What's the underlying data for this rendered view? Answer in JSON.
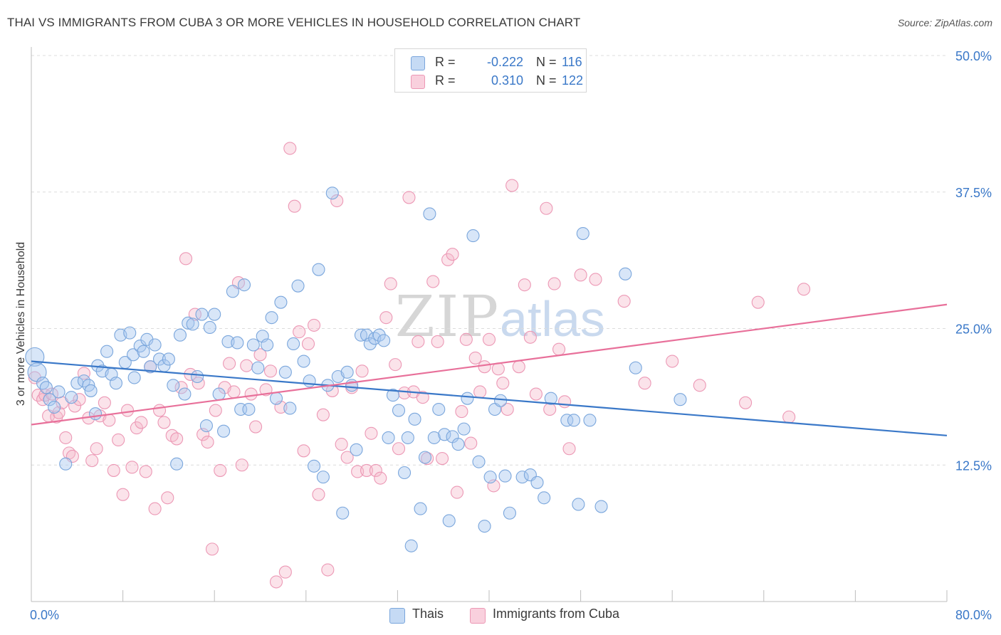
{
  "header": {
    "title": "THAI VS IMMIGRANTS FROM CUBA 3 OR MORE VEHICLES IN HOUSEHOLD CORRELATION CHART",
    "source": "Source: ZipAtlas.com"
  },
  "watermark": {
    "zip": "ZIP",
    "atlas": "atlas"
  },
  "legend": {
    "rows": [
      {
        "r_label": "R =",
        "r_value": "-0.222",
        "n_label": "N =",
        "n_value": "116",
        "color": "#a9c8ef"
      },
      {
        "r_label": "R =",
        "r_value": "0.310",
        "n_label": "N =",
        "n_value": "122",
        "color": "#f5b8cb"
      }
    ]
  },
  "bottom_legend": [
    {
      "label": "Thais",
      "color": "#a9c8ef"
    },
    {
      "label": "Immigrants from Cuba",
      "color": "#f5b8cb"
    }
  ],
  "chart_data": {
    "type": "scatter",
    "title": "THAI VS IMMIGRANTS FROM CUBA 3 OR MORE VEHICLES IN HOUSEHOLD CORRELATION CHART",
    "ylabel": "3 or more Vehicles in Household",
    "xlabel": "",
    "xlim": [
      0,
      80
    ],
    "ylim": [
      0,
      50
    ],
    "x_tick_labels": [
      "0.0%",
      "80.0%"
    ],
    "y_ticks": [
      12.5,
      25.0,
      37.5,
      50.0
    ],
    "y_tick_labels": [
      "12.5%",
      "25.0%",
      "37.5%",
      "50.0%"
    ],
    "grid": "horizontal dashed",
    "legend_position": "top-center",
    "colors": {
      "thais": "#3a78c8",
      "cuba": "#e8709a"
    },
    "series": [
      {
        "name": "Thais",
        "trend": {
          "x": [
            0,
            80
          ],
          "y": [
            22.0,
            15.2
          ]
        },
        "points": [
          [
            0.3,
            22.4
          ],
          [
            0.5,
            21.0
          ],
          [
            1.0,
            20.0
          ],
          [
            1.3,
            19.6
          ],
          [
            1.6,
            18.5
          ],
          [
            2.0,
            17.8
          ],
          [
            2.4,
            19.2
          ],
          [
            3.0,
            12.6
          ],
          [
            3.5,
            18.7
          ],
          [
            4.0,
            20.0
          ],
          [
            4.6,
            20.2
          ],
          [
            5.0,
            19.8
          ],
          [
            5.2,
            19.3
          ],
          [
            5.6,
            17.2
          ],
          [
            5.8,
            21.6
          ],
          [
            6.2,
            21.1
          ],
          [
            6.6,
            22.9
          ],
          [
            7.0,
            20.8
          ],
          [
            7.4,
            20.0
          ],
          [
            7.8,
            24.4
          ],
          [
            8.2,
            21.9
          ],
          [
            8.6,
            24.6
          ],
          [
            8.9,
            22.6
          ],
          [
            9.0,
            20.5
          ],
          [
            9.5,
            23.4
          ],
          [
            9.8,
            22.9
          ],
          [
            10.1,
            24.0
          ],
          [
            10.4,
            21.5
          ],
          [
            10.8,
            23.5
          ],
          [
            11.2,
            22.2
          ],
          [
            11.6,
            21.6
          ],
          [
            12.0,
            22.2
          ],
          [
            12.4,
            19.8
          ],
          [
            12.7,
            12.6
          ],
          [
            13.0,
            24.4
          ],
          [
            13.4,
            19.0
          ],
          [
            13.7,
            25.5
          ],
          [
            14.1,
            25.4
          ],
          [
            14.5,
            20.6
          ],
          [
            14.9,
            26.3
          ],
          [
            15.3,
            16.1
          ],
          [
            15.6,
            25.1
          ],
          [
            16.0,
            26.3
          ],
          [
            16.4,
            19.0
          ],
          [
            16.8,
            15.6
          ],
          [
            17.2,
            23.8
          ],
          [
            17.6,
            28.4
          ],
          [
            18.0,
            23.7
          ],
          [
            18.3,
            17.6
          ],
          [
            18.6,
            29.0
          ],
          [
            19.0,
            17.6
          ],
          [
            19.4,
            23.5
          ],
          [
            19.8,
            21.4
          ],
          [
            20.2,
            24.3
          ],
          [
            20.6,
            23.5
          ],
          [
            21.0,
            26.0
          ],
          [
            21.4,
            18.6
          ],
          [
            21.8,
            27.4
          ],
          [
            22.2,
            21.0
          ],
          [
            22.6,
            17.7
          ],
          [
            22.9,
            23.6
          ],
          [
            23.3,
            28.9
          ],
          [
            23.8,
            22.0
          ],
          [
            24.3,
            20.2
          ],
          [
            24.7,
            12.4
          ],
          [
            25.1,
            30.4
          ],
          [
            25.5,
            11.4
          ],
          [
            25.9,
            19.8
          ],
          [
            26.3,
            37.4
          ],
          [
            26.8,
            20.6
          ],
          [
            27.2,
            8.1
          ],
          [
            27.6,
            21.0
          ],
          [
            28.0,
            19.8
          ],
          [
            28.4,
            13.9
          ],
          [
            28.8,
            24.4
          ],
          [
            29.3,
            24.4
          ],
          [
            29.6,
            23.6
          ],
          [
            30.0,
            24.1
          ],
          [
            30.4,
            24.4
          ],
          [
            30.8,
            23.9
          ],
          [
            31.2,
            15.0
          ],
          [
            31.6,
            18.9
          ],
          [
            32.1,
            17.5
          ],
          [
            32.6,
            11.8
          ],
          [
            32.9,
            15.0
          ],
          [
            33.2,
            5.1
          ],
          [
            33.5,
            16.7
          ],
          [
            34.0,
            8.5
          ],
          [
            34.4,
            13.2
          ],
          [
            34.8,
            35.5
          ],
          [
            35.2,
            15.0
          ],
          [
            35.6,
            17.6
          ],
          [
            36.1,
            15.3
          ],
          [
            36.5,
            7.4
          ],
          [
            36.8,
            15.1
          ],
          [
            37.3,
            14.4
          ],
          [
            37.8,
            15.8
          ],
          [
            38.1,
            18.6
          ],
          [
            38.6,
            33.5
          ],
          [
            39.1,
            12.8
          ],
          [
            39.6,
            6.9
          ],
          [
            40.1,
            11.4
          ],
          [
            40.5,
            17.6
          ],
          [
            41.0,
            18.4
          ],
          [
            41.4,
            11.5
          ],
          [
            41.8,
            8.1
          ],
          [
            42.9,
            11.4
          ],
          [
            43.6,
            11.6
          ],
          [
            44.2,
            10.9
          ],
          [
            44.8,
            9.5
          ],
          [
            45.4,
            18.6
          ],
          [
            46.8,
            16.6
          ],
          [
            47.4,
            16.6
          ],
          [
            47.8,
            8.9
          ],
          [
            48.2,
            33.7
          ],
          [
            48.8,
            16.6
          ],
          [
            49.8,
            8.7
          ],
          [
            51.9,
            30.0
          ],
          [
            52.8,
            21.4
          ],
          [
            56.7,
            18.5
          ]
        ]
      },
      {
        "name": "Immigrants from Cuba",
        "trend": {
          "x": [
            0,
            80
          ],
          "y": [
            16.2,
            27.2
          ]
        },
        "points": [
          [
            0.3,
            20.5
          ],
          [
            0.6,
            18.9
          ],
          [
            1.0,
            18.5
          ],
          [
            1.2,
            18.9
          ],
          [
            1.5,
            17.0
          ],
          [
            1.8,
            19.0
          ],
          [
            2.2,
            16.9
          ],
          [
            2.4,
            17.3
          ],
          [
            2.7,
            18.2
          ],
          [
            3.0,
            15.0
          ],
          [
            3.3,
            13.6
          ],
          [
            3.6,
            13.3
          ],
          [
            3.8,
            17.9
          ],
          [
            4.2,
            18.5
          ],
          [
            4.6,
            20.9
          ],
          [
            5.0,
            16.8
          ],
          [
            5.3,
            12.9
          ],
          [
            5.7,
            14.0
          ],
          [
            6.0,
            17.0
          ],
          [
            6.4,
            18.2
          ],
          [
            6.8,
            16.6
          ],
          [
            7.2,
            12.0
          ],
          [
            7.6,
            14.8
          ],
          [
            8.0,
            9.8
          ],
          [
            8.4,
            17.5
          ],
          [
            8.8,
            12.3
          ],
          [
            9.2,
            15.9
          ],
          [
            9.6,
            16.4
          ],
          [
            10.0,
            11.9
          ],
          [
            10.4,
            21.5
          ],
          [
            10.8,
            8.5
          ],
          [
            11.2,
            17.5
          ],
          [
            11.6,
            16.4
          ],
          [
            11.9,
            9.5
          ],
          [
            12.3,
            15.2
          ],
          [
            12.7,
            14.9
          ],
          [
            13.1,
            19.6
          ],
          [
            13.5,
            31.4
          ],
          [
            13.9,
            20.8
          ],
          [
            14.3,
            26.3
          ],
          [
            14.6,
            20.0
          ],
          [
            15.0,
            15.3
          ],
          [
            15.4,
            14.6
          ],
          [
            15.8,
            4.8
          ],
          [
            16.1,
            17.5
          ],
          [
            16.5,
            12.0
          ],
          [
            16.9,
            19.6
          ],
          [
            17.3,
            21.8
          ],
          [
            17.7,
            19.2
          ],
          [
            18.1,
            29.2
          ],
          [
            18.4,
            12.5
          ],
          [
            18.8,
            21.6
          ],
          [
            19.2,
            19.0
          ],
          [
            19.6,
            16.0
          ],
          [
            20.0,
            22.6
          ],
          [
            20.5,
            19.4
          ],
          [
            20.9,
            21.1
          ],
          [
            21.4,
            1.8
          ],
          [
            21.8,
            17.8
          ],
          [
            22.2,
            2.7
          ],
          [
            22.6,
            41.5
          ],
          [
            23.0,
            36.2
          ],
          [
            23.4,
            24.7
          ],
          [
            23.8,
            13.8
          ],
          [
            24.2,
            23.6
          ],
          [
            24.7,
            25.3
          ],
          [
            25.1,
            9.8
          ],
          [
            25.5,
            17.1
          ],
          [
            25.9,
            2.9
          ],
          [
            26.3,
            19.3
          ],
          [
            26.7,
            36.7
          ],
          [
            27.1,
            14.4
          ],
          [
            27.6,
            13.2
          ],
          [
            28.0,
            19.6
          ],
          [
            28.5,
            11.9
          ],
          [
            28.9,
            21.1
          ],
          [
            29.3,
            12.0
          ],
          [
            29.7,
            15.4
          ],
          [
            30.1,
            12.0
          ],
          [
            30.5,
            11.3
          ],
          [
            31.0,
            26.0
          ],
          [
            31.4,
            29.1
          ],
          [
            31.8,
            21.7
          ],
          [
            32.1,
            14.0
          ],
          [
            32.6,
            19.1
          ],
          [
            33.0,
            37.0
          ],
          [
            33.4,
            19.2
          ],
          [
            33.8,
            23.8
          ],
          [
            34.2,
            18.7
          ],
          [
            34.6,
            13.1
          ],
          [
            35.1,
            29.3
          ],
          [
            35.5,
            23.8
          ],
          [
            35.9,
            13.1
          ],
          [
            36.4,
            31.3
          ],
          [
            36.8,
            31.8
          ],
          [
            37.2,
            10.0
          ],
          [
            37.6,
            17.4
          ],
          [
            38.0,
            24.0
          ],
          [
            38.4,
            14.5
          ],
          [
            38.8,
            22.3
          ],
          [
            39.2,
            19.2
          ],
          [
            39.6,
            21.5
          ],
          [
            40.0,
            24.0
          ],
          [
            40.4,
            10.6
          ],
          [
            40.8,
            21.3
          ],
          [
            41.2,
            20.0
          ],
          [
            41.6,
            17.6
          ],
          [
            42.0,
            38.1
          ],
          [
            42.6,
            21.5
          ],
          [
            43.1,
            29.0
          ],
          [
            43.6,
            24.2
          ],
          [
            44.1,
            19.0
          ],
          [
            45.0,
            36.0
          ],
          [
            45.3,
            17.6
          ],
          [
            45.7,
            29.1
          ],
          [
            46.1,
            23.1
          ],
          [
            46.6,
            18.3
          ],
          [
            47.0,
            14.0
          ],
          [
            48.0,
            29.9
          ],
          [
            49.3,
            29.5
          ],
          [
            51.8,
            27.5
          ],
          [
            53.6,
            20.0
          ],
          [
            56.0,
            22.0
          ],
          [
            58.4,
            19.8
          ],
          [
            62.4,
            18.2
          ],
          [
            63.5,
            27.4
          ],
          [
            66.2,
            16.9
          ],
          [
            67.5,
            28.6
          ]
        ]
      }
    ]
  }
}
